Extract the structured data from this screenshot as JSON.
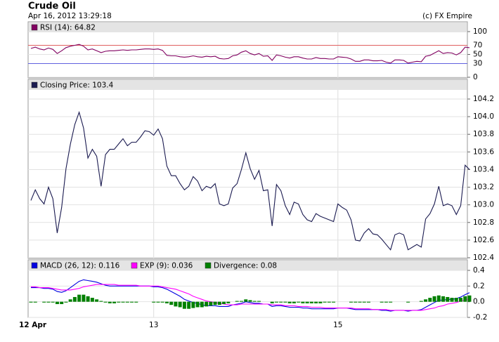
{
  "header": {
    "title": "Crude Oil",
    "timestamp": "Apr 16, 2012 13:29:18",
    "source": "(c) FX Empire"
  },
  "chart_data": [
    {
      "type": "line",
      "label": "RSI (14): 64.82",
      "color": "#800060",
      "values": [
        63,
        66,
        62,
        60,
        64,
        61,
        52,
        58,
        65,
        68,
        70,
        72,
        68,
        60,
        62,
        58,
        54,
        57,
        58,
        58,
        59,
        60,
        59,
        60,
        60,
        61,
        62,
        62,
        61,
        62,
        59,
        48,
        47,
        47,
        45,
        44,
        45,
        47,
        45,
        44,
        46,
        45,
        46,
        41,
        40,
        41,
        47,
        49,
        55,
        58,
        52,
        49,
        52,
        46,
        47,
        37,
        49,
        47,
        44,
        42,
        45,
        45,
        42,
        40,
        40,
        43,
        41,
        41,
        40,
        40,
        45,
        44,
        43,
        40,
        35,
        35,
        38,
        38,
        36,
        36,
        37,
        33,
        31,
        38,
        38,
        37,
        31,
        33,
        35,
        34,
        46,
        48,
        53,
        58,
        52,
        54,
        53,
        49,
        54,
        66,
        64.82
      ],
      "ylim": [
        0,
        100
      ],
      "yticks": [
        0,
        50,
        100
      ],
      "reference_lines": [
        {
          "value": 70,
          "color": "#e06060"
        },
        {
          "value": 30,
          "color": "#6060e0"
        }
      ],
      "grid": true
    },
    {
      "type": "line",
      "label": "Closing Price: 103.4",
      "color": "#1a1a50",
      "values": [
        103.05,
        103.17,
        103.07,
        103.01,
        103.2,
        103.07,
        102.68,
        102.97,
        103.41,
        103.69,
        103.91,
        104.05,
        103.87,
        103.53,
        103.63,
        103.55,
        103.21,
        103.57,
        103.63,
        103.63,
        103.69,
        103.75,
        103.67,
        103.71,
        103.71,
        103.77,
        103.84,
        103.83,
        103.79,
        103.86,
        103.75,
        103.44,
        103.33,
        103.33,
        103.24,
        103.17,
        103.21,
        103.32,
        103.27,
        103.16,
        103.21,
        103.19,
        103.24,
        103.01,
        102.99,
        103.01,
        103.19,
        103.24,
        103.4,
        103.59,
        103.41,
        103.29,
        103.39,
        103.16,
        103.17,
        102.76,
        103.23,
        103.16,
        102.99,
        102.89,
        103.03,
        103.01,
        102.89,
        102.83,
        102.81,
        102.9,
        102.87,
        102.85,
        102.83,
        102.81,
        103.01,
        102.97,
        102.94,
        102.83,
        102.6,
        102.59,
        102.68,
        102.73,
        102.67,
        102.66,
        102.61,
        102.55,
        102.49,
        102.66,
        102.68,
        102.66,
        102.49,
        102.52,
        102.55,
        102.52,
        102.84,
        102.9,
        103.01,
        103.21,
        102.99,
        103.01,
        102.99,
        102.89,
        102.99,
        103.45,
        103.4
      ],
      "ylim": [
        102.4,
        104.2
      ],
      "yticks": [
        102.4,
        102.6,
        102.8,
        {
          "value": 103,
          "label": "103.0"
        },
        103.2,
        103.4,
        103.6,
        103.8,
        {
          "value": 104,
          "label": "104.0"
        },
        104.2
      ],
      "grid": true
    },
    {
      "type": "combo",
      "categories": [
        "12 Apr",
        null,
        null,
        null,
        null,
        null,
        null,
        null,
        null,
        null,
        null,
        null,
        null,
        null,
        null,
        null,
        null,
        null,
        null,
        null,
        null,
        null,
        null,
        null,
        null,
        null,
        null,
        null,
        "13",
        null,
        null,
        null,
        null,
        null,
        null,
        null,
        null,
        null,
        null,
        null,
        null,
        null,
        null,
        null,
        null,
        null,
        null,
        null,
        null,
        null,
        null,
        null,
        null,
        null,
        null,
        null,
        null,
        null,
        null,
        null,
        null,
        null,
        null,
        null,
        null,
        null,
        null,
        null,
        null,
        null,
        "15",
        null,
        null,
        null,
        null,
        null,
        null,
        null,
        null,
        null,
        null,
        null,
        null,
        null,
        null,
        null,
        null,
        null,
        null,
        null,
        null,
        null,
        null,
        null,
        null,
        null,
        null,
        null,
        null,
        null,
        null
      ],
      "series": [
        {
          "name": "MACD (26, 12): 0.116",
          "type": "line",
          "color": "#0000e0",
          "values": [
            0.18,
            0.18,
            0.18,
            0.17,
            0.17,
            0.16,
            0.13,
            0.12,
            0.14,
            0.18,
            0.22,
            0.26,
            0.28,
            0.27,
            0.26,
            0.25,
            0.23,
            0.21,
            0.2,
            0.2,
            0.2,
            0.2,
            0.2,
            0.2,
            0.2,
            0.2,
            0.2,
            0.2,
            0.19,
            0.19,
            0.18,
            0.16,
            0.13,
            0.1,
            0.07,
            0.03,
            0.01,
            -0.01,
            -0.02,
            -0.04,
            -0.05,
            -0.05,
            -0.05,
            -0.06,
            -0.06,
            -0.06,
            -0.04,
            -0.03,
            -0.02,
            0.0,
            -0.01,
            -0.02,
            -0.02,
            -0.03,
            -0.03,
            -0.06,
            -0.05,
            -0.05,
            -0.06,
            -0.07,
            -0.07,
            -0.07,
            -0.08,
            -0.08,
            -0.09,
            -0.09,
            -0.09,
            -0.09,
            -0.09,
            -0.09,
            -0.08,
            -0.08,
            -0.08,
            -0.09,
            -0.1,
            -0.1,
            -0.1,
            -0.1,
            -0.1,
            -0.1,
            -0.11,
            -0.11,
            -0.12,
            -0.11,
            -0.11,
            -0.11,
            -0.12,
            -0.11,
            -0.11,
            -0.1,
            -0.07,
            -0.04,
            -0.01,
            0.02,
            0.02,
            0.03,
            0.03,
            0.04,
            0.06,
            0.09,
            0.116
          ]
        },
        {
          "name": "EXP (9): 0.036",
          "type": "line",
          "color": "#ff00ff",
          "values": [
            0.19,
            0.19,
            0.18,
            0.18,
            0.18,
            0.17,
            0.16,
            0.15,
            0.15,
            0.15,
            0.16,
            0.17,
            0.19,
            0.2,
            0.21,
            0.22,
            0.22,
            0.22,
            0.22,
            0.22,
            0.21,
            0.21,
            0.21,
            0.21,
            0.21,
            0.2,
            0.2,
            0.2,
            0.2,
            0.2,
            0.19,
            0.18,
            0.17,
            0.16,
            0.14,
            0.12,
            0.1,
            0.07,
            0.05,
            0.03,
            0.01,
            0.0,
            -0.01,
            -0.02,
            -0.03,
            -0.04,
            -0.04,
            -0.04,
            -0.03,
            -0.03,
            -0.03,
            -0.03,
            -0.03,
            -0.03,
            -0.03,
            -0.04,
            -0.04,
            -0.04,
            -0.05,
            -0.05,
            -0.05,
            -0.06,
            -0.06,
            -0.06,
            -0.07,
            -0.07,
            -0.07,
            -0.08,
            -0.08,
            -0.08,
            -0.08,
            -0.08,
            -0.08,
            -0.08,
            -0.09,
            -0.09,
            -0.09,
            -0.09,
            -0.1,
            -0.1,
            -0.1,
            -0.1,
            -0.11,
            -0.11,
            -0.11,
            -0.11,
            -0.11,
            -0.11,
            -0.11,
            -0.11,
            -0.1,
            -0.09,
            -0.08,
            -0.06,
            -0.05,
            -0.03,
            -0.02,
            -0.01,
            0.01,
            0.02,
            0.036
          ]
        },
        {
          "name": "Divergence: 0.08",
          "type": "bar",
          "color": "#008000",
          "values": [
            -0.01,
            -0.01,
            0,
            -0.01,
            -0.01,
            -0.01,
            -0.03,
            -0.03,
            -0.01,
            0.03,
            0.06,
            0.09,
            0.09,
            0.07,
            0.05,
            0.03,
            0.01,
            -0.01,
            -0.02,
            -0.02,
            -0.01,
            -0.01,
            -0.01,
            -0.01,
            -0.01,
            0,
            0,
            0,
            -0.01,
            -0.01,
            -0.01,
            -0.02,
            -0.04,
            -0.06,
            -0.07,
            -0.09,
            -0.09,
            -0.08,
            -0.07,
            -0.07,
            -0.06,
            -0.05,
            -0.04,
            -0.04,
            -0.03,
            -0.02,
            0,
            0.01,
            0.01,
            0.03,
            0.02,
            0.01,
            0.01,
            0,
            0,
            -0.02,
            -0.01,
            -0.01,
            -0.01,
            -0.02,
            -0.02,
            -0.01,
            -0.02,
            -0.02,
            -0.02,
            -0.02,
            -0.02,
            -0.01,
            -0.01,
            -0.01,
            0,
            0,
            0,
            -0.01,
            -0.01,
            -0.01,
            -0.01,
            -0.01,
            0,
            0,
            -0.01,
            -0.01,
            -0.01,
            0,
            0,
            0,
            -0.01,
            0,
            0,
            0.01,
            0.03,
            0.05,
            0.07,
            0.08,
            0.07,
            0.06,
            0.05,
            0.05,
            0.05,
            0.07,
            0.08
          ]
        }
      ],
      "ylim": [
        -0.2,
        0.4
      ],
      "yticks": [
        -0.2,
        {
          "value": 0,
          "label": "0.0"
        },
        0.2,
        0.4
      ],
      "grid": true
    }
  ]
}
